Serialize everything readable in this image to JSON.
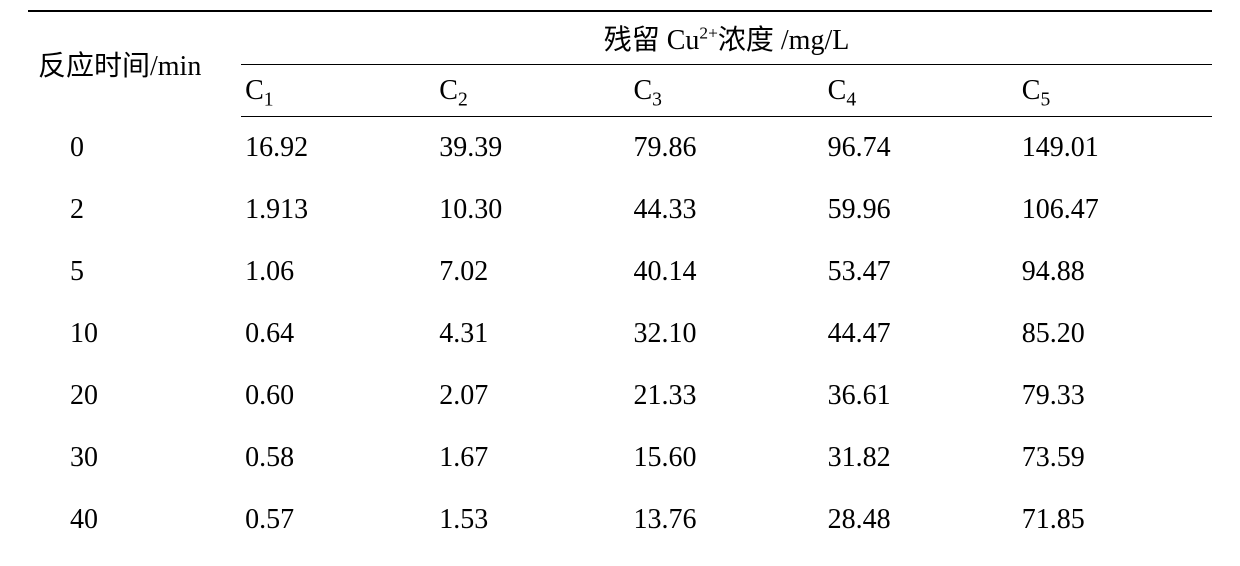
{
  "table": {
    "type": "table",
    "background_color": "#ffffff",
    "text_color": "#000000",
    "rule_color": "#000000",
    "font_family": "Times New Roman / SimSun",
    "font_size_pt": 21,
    "row_header_label": "反应时间/min",
    "group_header_prefix": "残留 Cu",
    "group_header_sup": "2+",
    "group_header_suffix": "浓度  /mg/L",
    "columns": {
      "c1_letter": "C",
      "c1_sub": "1",
      "c2_letter": "C",
      "c2_sub": "2",
      "c3_letter": "C",
      "c3_sub": "3",
      "c4_letter": "C",
      "c4_sub": "4",
      "c5_letter": "C",
      "c5_sub": "5"
    },
    "column_widths_pct": [
      18,
      16.4,
      16.4,
      16.4,
      16.4,
      16.4
    ],
    "rows": {
      "r0": {
        "t": "0",
        "c1": "16.92",
        "c2": "39.39",
        "c3": "79.86",
        "c4": "96.74",
        "c5": "149.01"
      },
      "r1": {
        "t": "2",
        "c1": "1.913",
        "c2": "10.30",
        "c3": "44.33",
        "c4": "59.96",
        "c5": "106.47"
      },
      "r2": {
        "t": "5",
        "c1": "1.06",
        "c2": "7.02",
        "c3": "40.14",
        "c4": "53.47",
        "c5": "94.88"
      },
      "r3": {
        "t": "10",
        "c1": "0.64",
        "c2": "4.31",
        "c3": "32.10",
        "c4": "44.47",
        "c5": "85.20"
      },
      "r4": {
        "t": "20",
        "c1": "0.60",
        "c2": "2.07",
        "c3": "21.33",
        "c4": "36.61",
        "c5": "79.33"
      },
      "r5": {
        "t": "30",
        "c1": "0.58",
        "c2": "1.67",
        "c3": "15.60",
        "c4": "31.82",
        "c5": "73.59"
      },
      "r6": {
        "t": "40",
        "c1": "0.57",
        "c2": "1.53",
        "c3": "13.76",
        "c4": "28.48",
        "c5": "71.85"
      }
    }
  }
}
